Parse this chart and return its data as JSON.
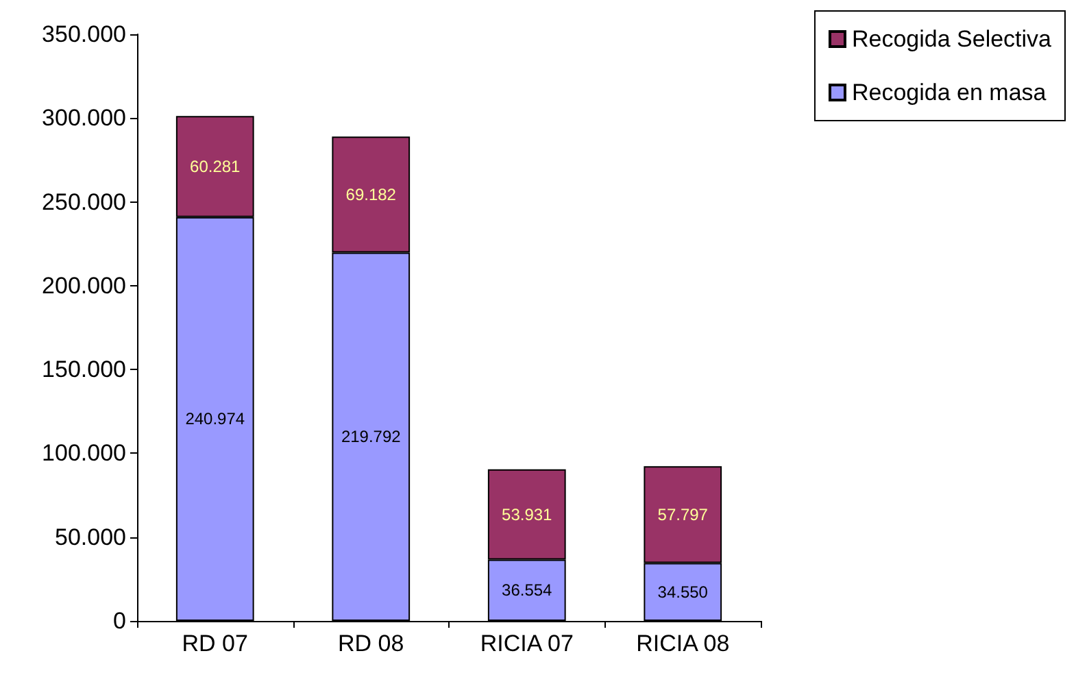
{
  "chart_data": {
    "type": "bar",
    "stacked": true,
    "categories": [
      "RD 07",
      "RD 08",
      "RICIA 07",
      "RICIA 08"
    ],
    "series": [
      {
        "name": "Recogida en masa",
        "color": "#9999ff",
        "values": [
          240974,
          219792,
          36554,
          34550
        ],
        "value_labels": [
          "240.974",
          "219.792",
          "36.554",
          "34.550"
        ]
      },
      {
        "name": "Recogida Selectiva",
        "color": "#993366",
        "values": [
          60281,
          69182,
          53931,
          57797
        ],
        "value_labels": [
          "60.281",
          "69.182",
          "53.931",
          "57.797"
        ]
      }
    ],
    "ylim": [
      0,
      350000
    ],
    "yticks": [
      {
        "value": 0,
        "label": "0"
      },
      {
        "value": 50000,
        "label": "50.000"
      },
      {
        "value": 100000,
        "label": "100.000"
      },
      {
        "value": 150000,
        "label": "150.000"
      },
      {
        "value": 200000,
        "label": "200.000"
      },
      {
        "value": 250000,
        "label": "250.000"
      },
      {
        "value": 300000,
        "label": "300.000"
      },
      {
        "value": 350000,
        "label": "350.000"
      }
    ],
    "grid": false,
    "legend": "top right"
  }
}
